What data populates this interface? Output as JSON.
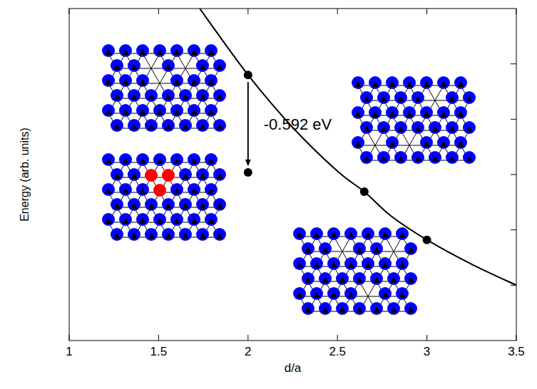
{
  "chart_data": {
    "type": "line",
    "x_label": "d/a",
    "y_label": "Energy (arb. units)",
    "xlim": [
      1,
      3.5
    ],
    "xticks": [
      1,
      1.5,
      2,
      2.5,
      3,
      3.5
    ],
    "ylim": [
      0,
      6
    ],
    "yticks": [
      1,
      2,
      3,
      4,
      5
    ],
    "tick_labels": "x",
    "grid": false,
    "series": [
      {
        "type": "line",
        "color": "#000000",
        "line_style": "solid",
        "x": [
          1.73,
          2.0,
          2.25,
          2.5,
          2.65,
          2.8,
          3.0,
          3.25,
          3.5
        ],
        "values": [
          6.0,
          4.8,
          3.85,
          3.06,
          2.69,
          2.25,
          1.82,
          1.38,
          1.0
        ]
      },
      {
        "type": "scatter",
        "color": "#000000",
        "marker": "circle",
        "x": [
          2,
          2,
          2.65,
          3
        ],
        "values": [
          4.8,
          3.04,
          2.69,
          1.82
        ]
      }
    ],
    "annotations": [
      {
        "text": "-0.592 eV"
      }
    ]
  }
}
